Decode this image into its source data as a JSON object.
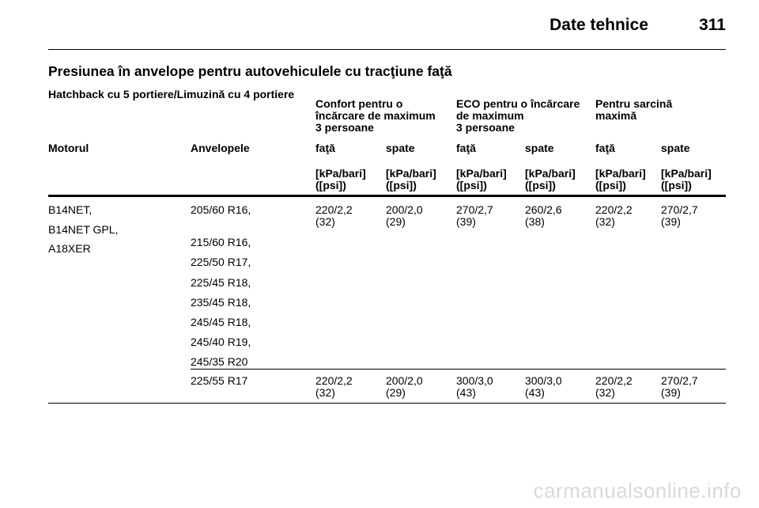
{
  "header": {
    "title": "Date tehnice",
    "page_number": "311"
  },
  "section_title": "Presiunea în anvelope pentru autovehiculele cu tracţiune faţă",
  "subsection_title": "Hatchback cu 5 portiere/Limuzină cu 4 portiere",
  "table": {
    "load_groups": [
      {
        "line1": "Confort pentru o",
        "line2": "încărcare de maximum",
        "line3": "3 persoane"
      },
      {
        "line1": "ECO pentru o încărcare",
        "line2": "de maximum",
        "line3": "3 persoane"
      },
      {
        "line1": "Pentru sarcină",
        "line2": "maximă",
        "line3": ""
      }
    ],
    "col_engine": "Motorul",
    "col_tyres": "Anvelopele",
    "position_headers": [
      "faţă",
      "spate",
      "faţă",
      "spate",
      "faţă",
      "spate"
    ],
    "unit_line1": "[kPa/bari]",
    "unit_line2": "([psi])",
    "rows": [
      {
        "engines": [
          "B14NET,",
          "B14NET GPL,",
          "A18XER"
        ],
        "tyres": [
          "205/60 R16,",
          "215/60 R16,",
          "225/50 R17,",
          "225/45 R18,",
          "235/45 R18,",
          "245/45 R18,",
          "245/40 R19,",
          "245/35 R20"
        ],
        "values": [
          {
            "kpa": "220/2,2",
            "psi": "(32)"
          },
          {
            "kpa": "200/2,0",
            "psi": "(29)"
          },
          {
            "kpa": "270/2,7",
            "psi": "(39)"
          },
          {
            "kpa": "260/2,6",
            "psi": "(38)"
          },
          {
            "kpa": "220/2,2",
            "psi": "(32)"
          },
          {
            "kpa": "270/2,7",
            "psi": "(39)"
          }
        ]
      },
      {
        "engines": [],
        "tyres": [
          "225/55 R17"
        ],
        "values": [
          {
            "kpa": "220/2,2",
            "psi": "(32)"
          },
          {
            "kpa": "200/2,0",
            "psi": "(29)"
          },
          {
            "kpa": "300/3,0",
            "psi": "(43)"
          },
          {
            "kpa": "300/3,0",
            "psi": "(43)"
          },
          {
            "kpa": "220/2,2",
            "psi": "(32)"
          },
          {
            "kpa": "270/2,7",
            "psi": "(39)"
          }
        ]
      }
    ]
  },
  "watermark": "carmanualsonline.info"
}
